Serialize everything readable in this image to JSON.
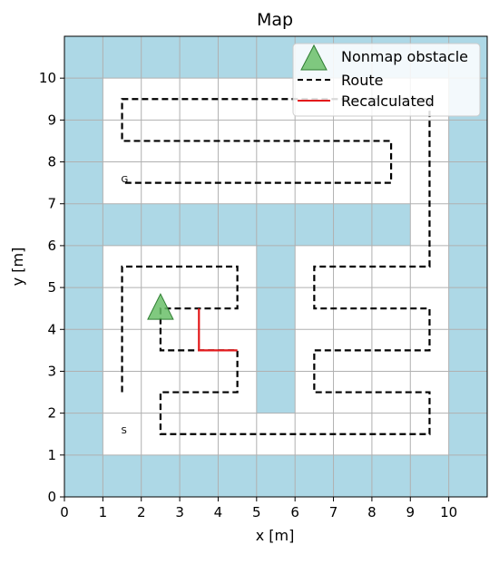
{
  "chart_data": {
    "type": "line",
    "title": "Map",
    "xlabel": "x [m]",
    "ylabel": "y [m]",
    "xlim": [
      0,
      11
    ],
    "ylim": [
      0,
      11
    ],
    "xticks": [
      0,
      1,
      2,
      3,
      4,
      5,
      6,
      7,
      8,
      9,
      10
    ],
    "yticks": [
      0,
      1,
      2,
      3,
      4,
      5,
      6,
      7,
      8,
      9,
      10
    ],
    "grid": true,
    "legend_position": "top-right",
    "colors": {
      "wall": "#add8e6",
      "route": "#000000",
      "recalculated": "#e31a1c",
      "obstacle": "#4caf50"
    },
    "walls": [
      {
        "x": 0,
        "y": 0,
        "w": 11,
        "h": 1
      },
      {
        "x": 0,
        "y": 10,
        "w": 11,
        "h": 1
      },
      {
        "x": 0,
        "y": 1,
        "w": 1,
        "h": 9
      },
      {
        "x": 10,
        "y": 1,
        "w": 1,
        "h": 9
      },
      {
        "x": 1,
        "y": 6,
        "w": 8,
        "h": 1
      },
      {
        "x": 5,
        "y": 2,
        "w": 1,
        "h": 4
      }
    ],
    "start": {
      "x": 1.5,
      "y": 1.6,
      "label": "S"
    },
    "goal": {
      "x": 1.5,
      "y": 7.6,
      "label": "G"
    },
    "series": [
      {
        "name": "Route",
        "style": "dashed",
        "points": [
          [
            1.5,
            2.5
          ],
          [
            1.5,
            5.5
          ],
          [
            4.5,
            5.5
          ],
          [
            4.5,
            4.5
          ],
          [
            2.5,
            4.5
          ],
          [
            2.5,
            3.5
          ],
          [
            4.5,
            3.5
          ],
          [
            4.5,
            2.5
          ],
          [
            2.5,
            2.5
          ],
          [
            2.5,
            1.5
          ],
          [
            9.5,
            1.5
          ],
          [
            9.5,
            2.5
          ],
          [
            6.5,
            2.5
          ],
          [
            6.5,
            3.5
          ],
          [
            9.5,
            3.5
          ],
          [
            9.5,
            4.5
          ],
          [
            6.5,
            4.5
          ],
          [
            6.5,
            5.5
          ],
          [
            9.5,
            5.5
          ],
          [
            9.5,
            9.5
          ],
          [
            1.5,
            9.5
          ],
          [
            1.5,
            8.5
          ],
          [
            8.5,
            8.5
          ],
          [
            8.5,
            7.5
          ],
          [
            1.5,
            7.5
          ]
        ]
      },
      {
        "name": "Recalculated",
        "style": "solid",
        "points": [
          [
            3.5,
            4.5
          ],
          [
            3.5,
            3.5
          ],
          [
            4.5,
            3.5
          ]
        ]
      }
    ],
    "markers": [
      {
        "name": "Nonmap obstacle",
        "shape": "triangle",
        "x": 2.5,
        "y": 4.5
      }
    ],
    "legend": [
      "Nonmap obstacle",
      "Route",
      "Recalculated"
    ]
  }
}
